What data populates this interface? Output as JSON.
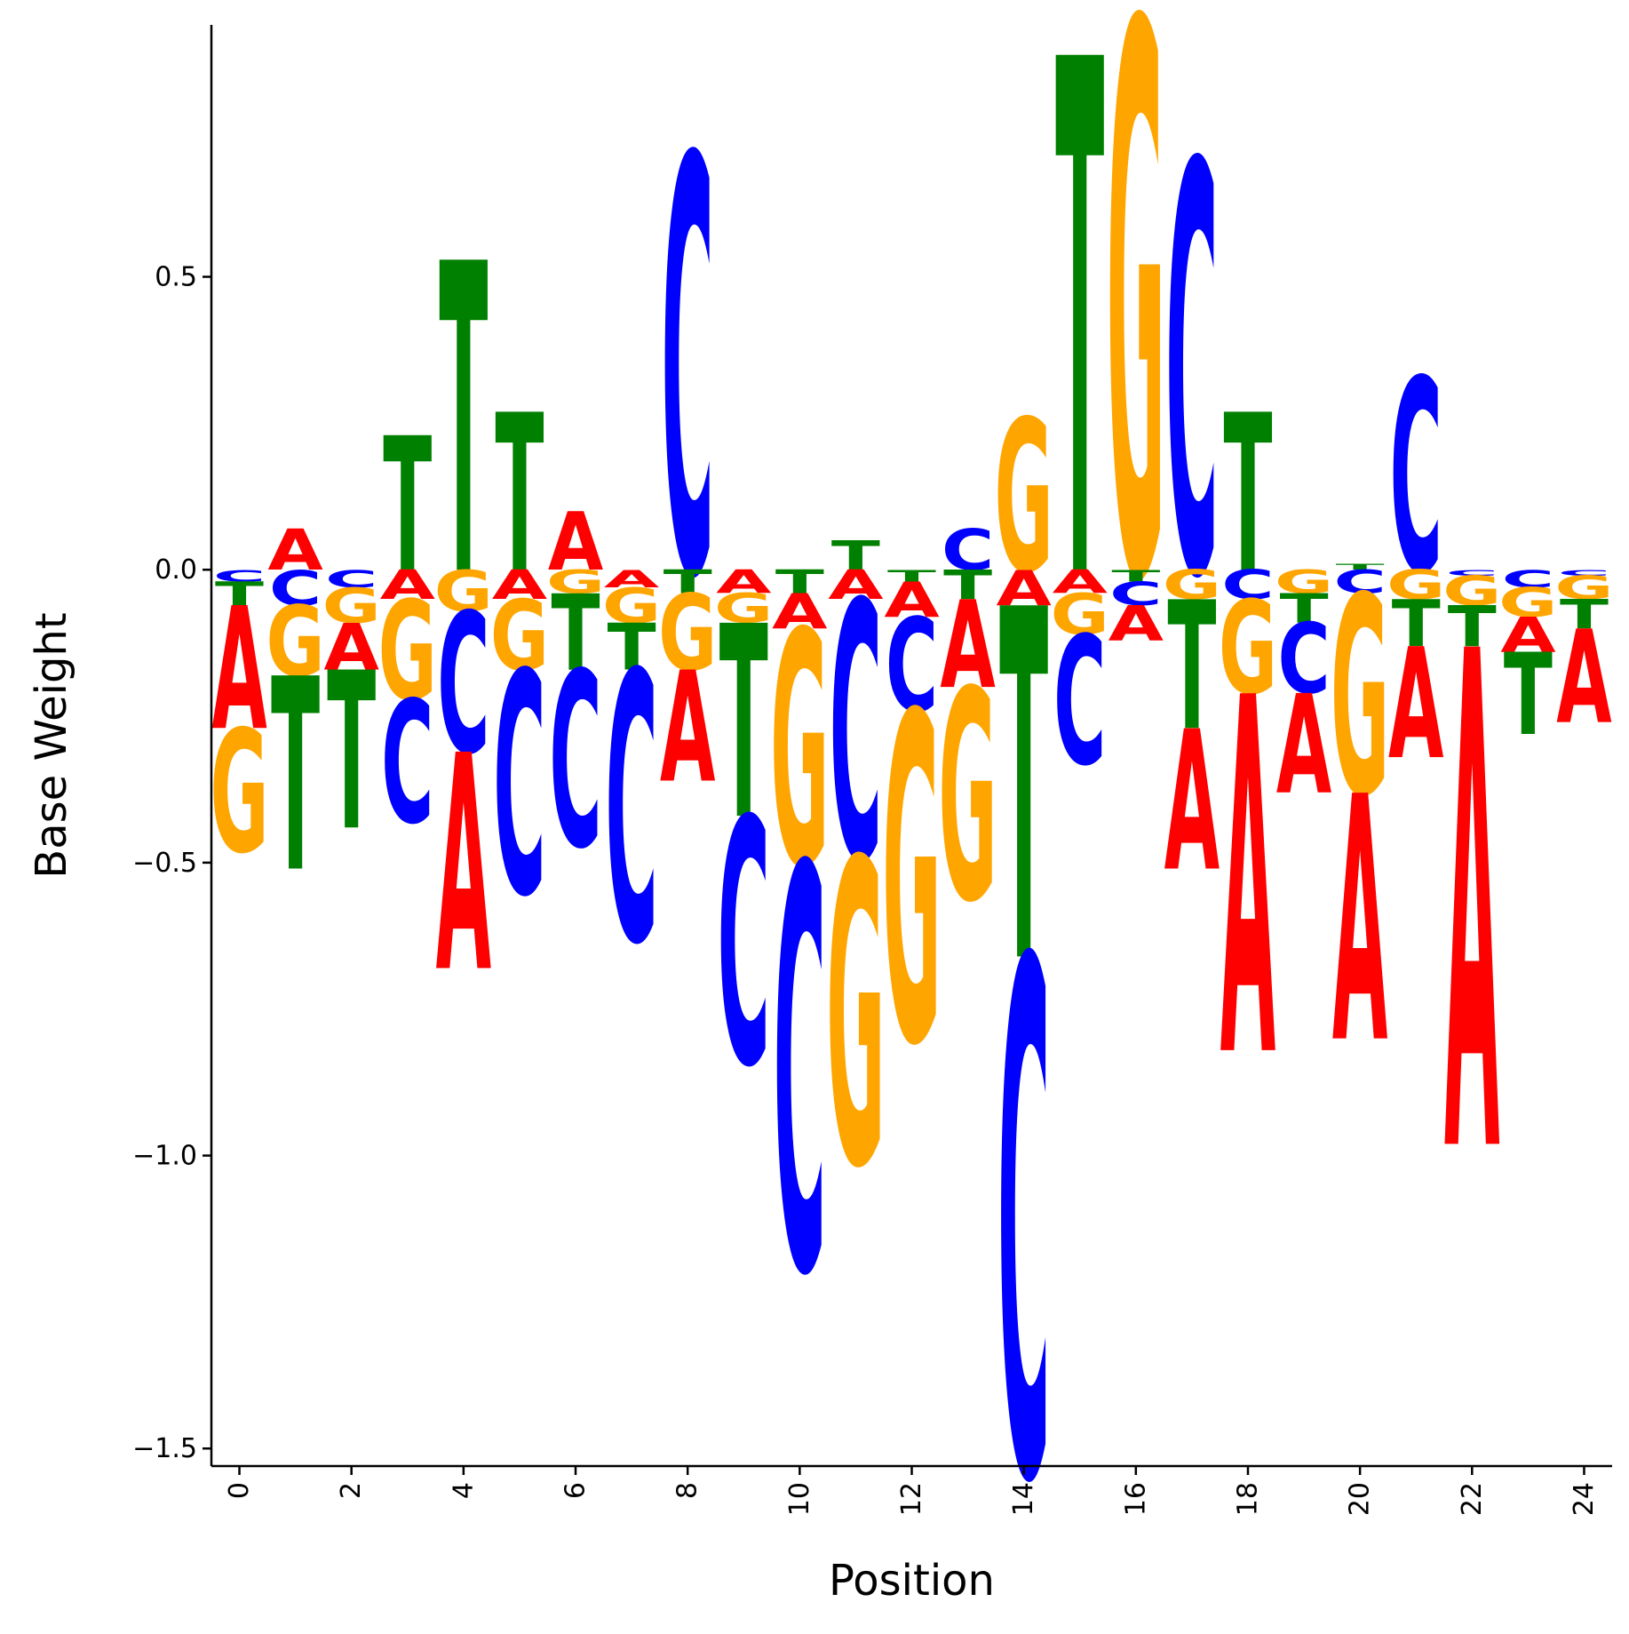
{
  "chart_data": {
    "type": "sequence-logo",
    "xlabel": "Position",
    "ylabel": "Base Weight",
    "xlim": [
      -0.5,
      24.5
    ],
    "ylim": [
      -1.53,
      0.93
    ],
    "x_ticks": [
      0,
      2,
      4,
      6,
      8,
      10,
      12,
      14,
      16,
      18,
      20,
      22,
      24
    ],
    "y_ticks": [
      0.5,
      0.0,
      -0.5,
      -1.0,
      -1.5
    ],
    "y_tick_labels": [
      "0.5",
      "0.0",
      "−0.5",
      "−1.0",
      "−1.5"
    ],
    "x_tick_rotation_deg": 90,
    "grid": false,
    "colors": {
      "A": "#ff0000",
      "C": "#0000ff",
      "G": "#ffa500",
      "T": "#008000"
    },
    "positions": [
      {
        "pos": 0,
        "A": -0.21,
        "C": -0.02,
        "G": -0.21,
        "T": -0.04
      },
      {
        "pos": 1,
        "A": 0.07,
        "C": -0.06,
        "G": -0.12,
        "T": -0.33
      },
      {
        "pos": 2,
        "A": -0.08,
        "C": -0.03,
        "G": -0.06,
        "T": -0.27
      },
      {
        "pos": 3,
        "A": -0.05,
        "C": -0.21,
        "G": -0.17,
        "T": 0.23
      },
      {
        "pos": 4,
        "A": -0.37,
        "C": -0.24,
        "G": -0.07,
        "T": 0.53
      },
      {
        "pos": 5,
        "A": -0.05,
        "C": -0.38,
        "G": -0.12,
        "T": 0.27
      },
      {
        "pos": 6,
        "A": 0.1,
        "C": -0.3,
        "G": -0.04,
        "T": -0.13
      },
      {
        "pos": 7,
        "A": -0.03,
        "C": -0.46,
        "G": -0.06,
        "T": -0.08
      },
      {
        "pos": 8,
        "A": -0.19,
        "C": 0.71,
        "G": -0.13,
        "T": -0.04
      },
      {
        "pos": 9,
        "A": -0.04,
        "C": -0.42,
        "G": -0.05,
        "T": -0.33
      },
      {
        "pos": 10,
        "A": -0.06,
        "C": -0.69,
        "G": -0.4,
        "T": -0.04
      },
      {
        "pos": 11,
        "A": -0.05,
        "C": -0.44,
        "G": -0.52,
        "T": 0.05
      },
      {
        "pos": 12,
        "A": -0.06,
        "C": -0.16,
        "G": -0.56,
        "T": -0.02
      },
      {
        "pos": 13,
        "A": -0.15,
        "C": 0.07,
        "G": -0.36,
        "T": -0.05
      },
      {
        "pos": 14,
        "A": -0.06,
        "C": -0.88,
        "G": 0.26,
        "T": -0.6
      },
      {
        "pos": 15,
        "A": -0.04,
        "C": -0.22,
        "G": -0.07,
        "T": 0.88
      },
      {
        "pos": 16,
        "A": -0.06,
        "C": -0.04,
        "G": 0.94,
        "T": -0.02
      },
      {
        "pos": 17,
        "A": -0.24,
        "C": 0.7,
        "G": -0.05,
        "T": -0.22
      },
      {
        "pos": 18,
        "A": -0.61,
        "C": -0.05,
        "G": -0.16,
        "T": 0.27
      },
      {
        "pos": 19,
        "A": -0.17,
        "C": -0.12,
        "G": -0.04,
        "T": -0.05
      },
      {
        "pos": 20,
        "A": -0.42,
        "C": -0.04,
        "G": -0.34,
        "T": 0.01
      },
      {
        "pos": 21,
        "A": -0.19,
        "C": 0.33,
        "G": -0.05,
        "T": -0.08
      },
      {
        "pos": 22,
        "A": -0.85,
        "C": -0.01,
        "G": -0.05,
        "T": -0.07
      },
      {
        "pos": 23,
        "A": -0.06,
        "C": -0.03,
        "G": -0.05,
        "T": -0.14
      },
      {
        "pos": 24,
        "A": -0.16,
        "C": -0.01,
        "G": -0.04,
        "T": -0.05
      }
    ]
  }
}
